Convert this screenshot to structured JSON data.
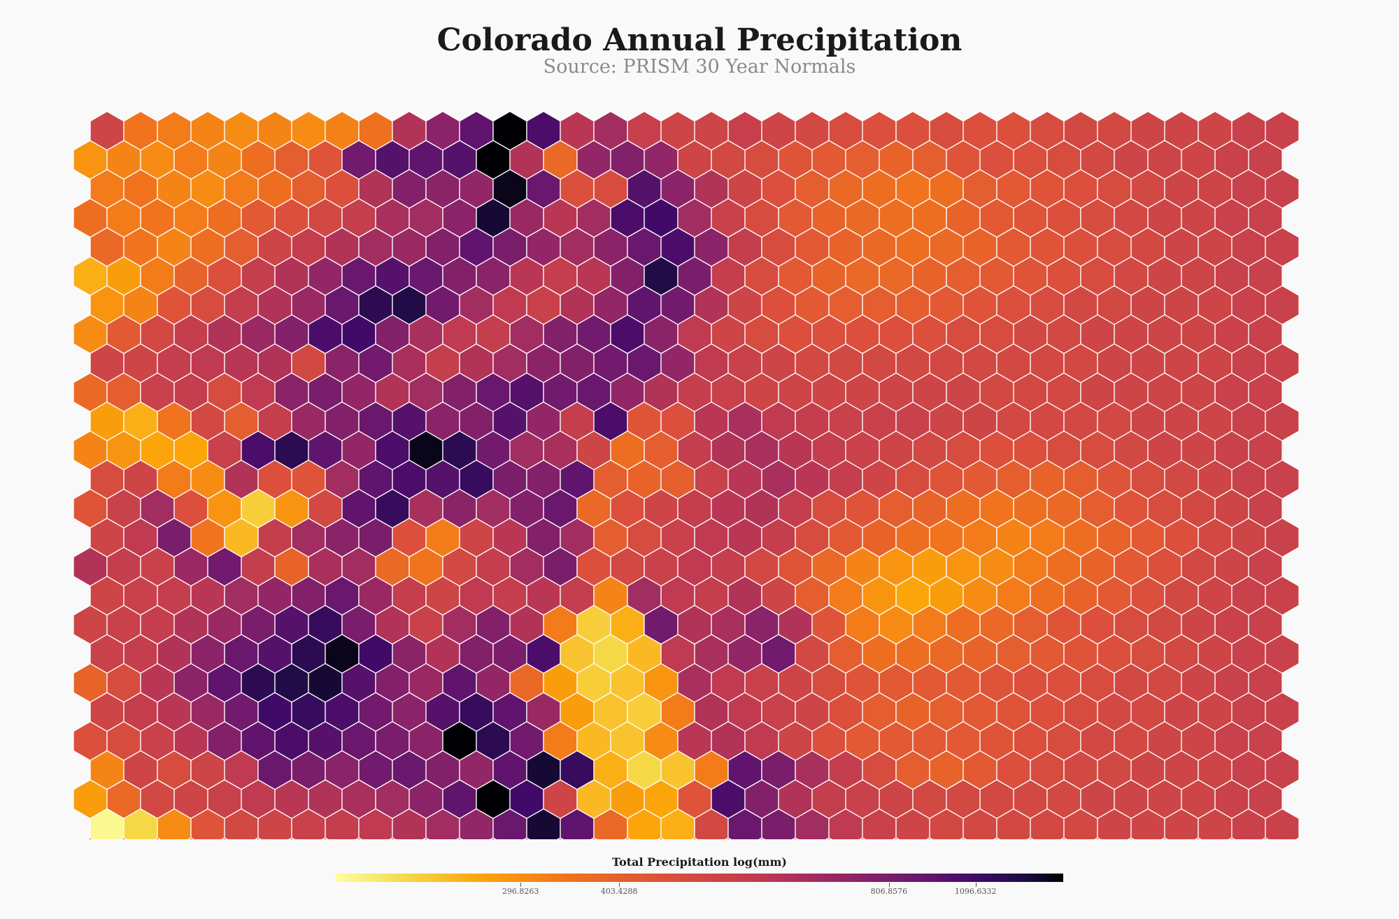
{
  "title": "Colorado Annual Precipitation",
  "subtitle": "Source: PRISM 30 Year Normals",
  "chart_data": {
    "type": "heatmap",
    "grid": "hexagonal",
    "rows": 26,
    "columns": 36,
    "colormap": "inferno_r",
    "legend": {
      "title": "Total Precipitation log(mm)",
      "placement": "bottom",
      "ticks": [
        "296.8263",
        "403.4288",
        "806.8576",
        "1096.6332"
      ],
      "stops": [
        {
          "offset": 0.0,
          "color": "#fcffa4"
        },
        {
          "offset": 0.1,
          "color": "#f6d746"
        },
        {
          "offset": 0.2,
          "color": "#fca50a"
        },
        {
          "offset": 0.32,
          "color": "#f1731d"
        },
        {
          "offset": 0.45,
          "color": "#dd513a"
        },
        {
          "offset": 0.58,
          "color": "#c03a51"
        },
        {
          "offset": 0.7,
          "color": "#932667"
        },
        {
          "offset": 0.8,
          "color": "#6a176e"
        },
        {
          "offset": 0.88,
          "color": "#420a68"
        },
        {
          "offset": 0.95,
          "color": "#1b0c41"
        },
        {
          "offset": 1.0,
          "color": "#000004"
        }
      ]
    },
    "values": [
      [
        0.52,
        0.32,
        0.3,
        0.28,
        0.26,
        0.28,
        0.26,
        0.29,
        0.33,
        0.62,
        0.72,
        0.82,
        1.0,
        0.86,
        0.6,
        0.66,
        0.55,
        0.52,
        0.52,
        0.55,
        0.52,
        0.5,
        0.48,
        0.46,
        0.46,
        0.48,
        0.46,
        0.46,
        0.48,
        0.5,
        0.5,
        0.52,
        0.52,
        0.52,
        0.54,
        0.54
      ],
      [
        0.24,
        0.28,
        0.26,
        0.3,
        0.28,
        0.34,
        0.4,
        0.44,
        0.78,
        0.84,
        0.82,
        0.84,
        1.0,
        0.62,
        0.36,
        0.7,
        0.74,
        0.7,
        0.52,
        0.5,
        0.48,
        0.44,
        0.42,
        0.4,
        0.38,
        0.4,
        0.44,
        0.46,
        0.46,
        0.48,
        0.5,
        0.52,
        0.52,
        0.52,
        0.54,
        0.54
      ],
      [
        0.3,
        0.32,
        0.28,
        0.26,
        0.3,
        0.34,
        0.4,
        0.46,
        0.62,
        0.74,
        0.72,
        0.7,
        0.98,
        0.8,
        0.46,
        0.48,
        0.84,
        0.72,
        0.62,
        0.52,
        0.46,
        0.4,
        0.36,
        0.34,
        0.32,
        0.34,
        0.4,
        0.42,
        0.44,
        0.46,
        0.48,
        0.5,
        0.52,
        0.52,
        0.54,
        0.54
      ],
      [
        0.34,
        0.3,
        0.32,
        0.3,
        0.34,
        0.42,
        0.46,
        0.5,
        0.56,
        0.64,
        0.66,
        0.72,
        0.96,
        0.68,
        0.6,
        0.66,
        0.86,
        0.88,
        0.66,
        0.54,
        0.48,
        0.42,
        0.38,
        0.36,
        0.34,
        0.34,
        0.38,
        0.42,
        0.44,
        0.46,
        0.48,
        0.5,
        0.52,
        0.52,
        0.54,
        0.54
      ],
      [
        0.36,
        0.32,
        0.28,
        0.34,
        0.4,
        0.52,
        0.56,
        0.62,
        0.66,
        0.68,
        0.74,
        0.82,
        0.76,
        0.7,
        0.66,
        0.72,
        0.8,
        0.86,
        0.72,
        0.56,
        0.48,
        0.42,
        0.38,
        0.36,
        0.34,
        0.36,
        0.38,
        0.42,
        0.44,
        0.46,
        0.48,
        0.5,
        0.52,
        0.52,
        0.54,
        0.54
      ],
      [
        0.18,
        0.22,
        0.3,
        0.38,
        0.46,
        0.56,
        0.62,
        0.7,
        0.8,
        0.84,
        0.8,
        0.74,
        0.72,
        0.6,
        0.56,
        0.6,
        0.74,
        0.94,
        0.76,
        0.56,
        0.48,
        0.42,
        0.38,
        0.36,
        0.36,
        0.38,
        0.4,
        0.42,
        0.44,
        0.46,
        0.48,
        0.5,
        0.52,
        0.52,
        0.54,
        0.54
      ],
      [
        0.24,
        0.28,
        0.44,
        0.48,
        0.56,
        0.62,
        0.68,
        0.8,
        0.92,
        0.94,
        0.78,
        0.66,
        0.58,
        0.54,
        0.62,
        0.7,
        0.82,
        0.78,
        0.62,
        0.52,
        0.46,
        0.42,
        0.4,
        0.4,
        0.4,
        0.42,
        0.44,
        0.46,
        0.48,
        0.5,
        0.5,
        0.52,
        0.52,
        0.52,
        0.54,
        0.54
      ],
      [
        0.26,
        0.42,
        0.5,
        0.56,
        0.62,
        0.68,
        0.74,
        0.86,
        0.88,
        0.74,
        0.64,
        0.58,
        0.56,
        0.66,
        0.74,
        0.78,
        0.86,
        0.72,
        0.58,
        0.52,
        0.48,
        0.46,
        0.46,
        0.46,
        0.46,
        0.46,
        0.48,
        0.48,
        0.5,
        0.5,
        0.52,
        0.52,
        0.52,
        0.52,
        0.54,
        0.54
      ],
      [
        0.52,
        0.52,
        0.56,
        0.58,
        0.6,
        0.62,
        0.5,
        0.72,
        0.78,
        0.64,
        0.56,
        0.62,
        0.66,
        0.72,
        0.74,
        0.78,
        0.8,
        0.7,
        0.58,
        0.54,
        0.52,
        0.5,
        0.5,
        0.5,
        0.5,
        0.5,
        0.5,
        0.5,
        0.5,
        0.5,
        0.52,
        0.52,
        0.52,
        0.52,
        0.54,
        0.54
      ],
      [
        0.36,
        0.4,
        0.54,
        0.56,
        0.48,
        0.58,
        0.72,
        0.76,
        0.7,
        0.62,
        0.66,
        0.74,
        0.8,
        0.84,
        0.78,
        0.8,
        0.7,
        0.62,
        0.56,
        0.54,
        0.52,
        0.52,
        0.52,
        0.52,
        0.52,
        0.52,
        0.52,
        0.5,
        0.5,
        0.5,
        0.52,
        0.52,
        0.52,
        0.52,
        0.54,
        0.54
      ],
      [
        0.22,
        0.18,
        0.32,
        0.5,
        0.4,
        0.56,
        0.68,
        0.74,
        0.8,
        0.84,
        0.72,
        0.74,
        0.84,
        0.7,
        0.56,
        0.86,
        0.44,
        0.46,
        0.6,
        0.64,
        0.58,
        0.56,
        0.54,
        0.54,
        0.54,
        0.52,
        0.52,
        0.5,
        0.5,
        0.5,
        0.5,
        0.52,
        0.52,
        0.52,
        0.54,
        0.54
      ],
      [
        0.28,
        0.24,
        0.2,
        0.2,
        0.54,
        0.86,
        0.92,
        0.82,
        0.7,
        0.86,
        0.98,
        0.92,
        0.78,
        0.66,
        0.64,
        0.52,
        0.34,
        0.4,
        0.56,
        0.62,
        0.64,
        0.6,
        0.56,
        0.54,
        0.52,
        0.5,
        0.48,
        0.46,
        0.46,
        0.48,
        0.48,
        0.5,
        0.52,
        0.52,
        0.54,
        0.54
      ],
      [
        0.48,
        0.52,
        0.3,
        0.26,
        0.62,
        0.46,
        0.44,
        0.66,
        0.82,
        0.86,
        0.84,
        0.9,
        0.76,
        0.74,
        0.82,
        0.4,
        0.38,
        0.4,
        0.54,
        0.6,
        0.64,
        0.6,
        0.56,
        0.52,
        0.48,
        0.44,
        0.42,
        0.4,
        0.38,
        0.4,
        0.44,
        0.48,
        0.5,
        0.52,
        0.54,
        0.54
      ],
      [
        0.44,
        0.54,
        0.66,
        0.46,
        0.24,
        0.12,
        0.24,
        0.5,
        0.82,
        0.9,
        0.64,
        0.72,
        0.66,
        0.74,
        0.8,
        0.36,
        0.46,
        0.52,
        0.56,
        0.6,
        0.62,
        0.56,
        0.48,
        0.44,
        0.4,
        0.38,
        0.34,
        0.32,
        0.34,
        0.36,
        0.4,
        0.44,
        0.48,
        0.5,
        0.52,
        0.54
      ],
      [
        0.52,
        0.58,
        0.76,
        0.32,
        0.16,
        0.56,
        0.66,
        0.72,
        0.76,
        0.46,
        0.3,
        0.52,
        0.6,
        0.74,
        0.66,
        0.4,
        0.48,
        0.54,
        0.58,
        0.6,
        0.56,
        0.48,
        0.42,
        0.38,
        0.34,
        0.32,
        0.3,
        0.28,
        0.3,
        0.34,
        0.38,
        0.42,
        0.46,
        0.5,
        0.52,
        0.54
      ],
      [
        0.62,
        0.56,
        0.54,
        0.68,
        0.78,
        0.56,
        0.38,
        0.64,
        0.66,
        0.36,
        0.32,
        0.5,
        0.56,
        0.66,
        0.76,
        0.46,
        0.5,
        0.54,
        0.58,
        0.56,
        0.5,
        0.44,
        0.36,
        0.28,
        0.24,
        0.22,
        0.24,
        0.26,
        0.3,
        0.34,
        0.38,
        0.42,
        0.46,
        0.5,
        0.52,
        0.54
      ],
      [
        0.52,
        0.54,
        0.56,
        0.6,
        0.66,
        0.7,
        0.74,
        0.8,
        0.68,
        0.56,
        0.52,
        0.58,
        0.56,
        0.6,
        0.56,
        0.28,
        0.66,
        0.58,
        0.56,
        0.62,
        0.52,
        0.4,
        0.3,
        0.24,
        0.2,
        0.22,
        0.26,
        0.3,
        0.34,
        0.38,
        0.42,
        0.46,
        0.5,
        0.52,
        0.54,
        0.54
      ],
      [
        0.52,
        0.54,
        0.56,
        0.62,
        0.68,
        0.76,
        0.84,
        0.9,
        0.76,
        0.62,
        0.54,
        0.66,
        0.74,
        0.62,
        0.3,
        0.12,
        0.18,
        0.78,
        0.62,
        0.64,
        0.72,
        0.62,
        0.44,
        0.3,
        0.26,
        0.3,
        0.34,
        0.36,
        0.4,
        0.44,
        0.46,
        0.48,
        0.5,
        0.52,
        0.54,
        0.54
      ],
      [
        0.54,
        0.56,
        0.62,
        0.72,
        0.8,
        0.84,
        0.92,
        0.98,
        0.88,
        0.72,
        0.62,
        0.74,
        0.76,
        0.86,
        0.14,
        0.1,
        0.16,
        0.58,
        0.64,
        0.7,
        0.78,
        0.5,
        0.4,
        0.34,
        0.34,
        0.36,
        0.38,
        0.4,
        0.42,
        0.44,
        0.46,
        0.48,
        0.5,
        0.52,
        0.54,
        0.54
      ],
      [
        0.38,
        0.48,
        0.6,
        0.72,
        0.82,
        0.92,
        0.94,
        0.96,
        0.84,
        0.74,
        0.68,
        0.82,
        0.7,
        0.36,
        0.22,
        0.12,
        0.14,
        0.24,
        0.64,
        0.58,
        0.54,
        0.52,
        0.48,
        0.44,
        0.42,
        0.42,
        0.42,
        0.44,
        0.46,
        0.46,
        0.48,
        0.5,
        0.5,
        0.52,
        0.54,
        0.54
      ],
      [
        0.52,
        0.56,
        0.6,
        0.68,
        0.78,
        0.88,
        0.9,
        0.86,
        0.78,
        0.72,
        0.84,
        0.9,
        0.82,
        0.68,
        0.22,
        0.14,
        0.12,
        0.3,
        0.62,
        0.58,
        0.54,
        0.52,
        0.46,
        0.4,
        0.38,
        0.4,
        0.42,
        0.44,
        0.46,
        0.48,
        0.5,
        0.5,
        0.52,
        0.52,
        0.54,
        0.54
      ],
      [
        0.46,
        0.48,
        0.54,
        0.6,
        0.74,
        0.82,
        0.86,
        0.84,
        0.8,
        0.76,
        0.72,
        1.0,
        0.92,
        0.78,
        0.3,
        0.16,
        0.14,
        0.26,
        0.6,
        0.62,
        0.58,
        0.52,
        0.46,
        0.42,
        0.42,
        0.42,
        0.42,
        0.44,
        0.46,
        0.48,
        0.5,
        0.5,
        0.52,
        0.52,
        0.54,
        0.54
      ],
      [
        0.28,
        0.52,
        0.48,
        0.52,
        0.58,
        0.8,
        0.76,
        0.72,
        0.78,
        0.8,
        0.74,
        0.7,
        0.82,
        0.96,
        0.9,
        0.18,
        0.1,
        0.14,
        0.3,
        0.82,
        0.76,
        0.64,
        0.56,
        0.48,
        0.4,
        0.38,
        0.42,
        0.46,
        0.48,
        0.5,
        0.5,
        0.52,
        0.52,
        0.52,
        0.54,
        0.54
      ],
      [
        0.22,
        0.36,
        0.5,
        0.52,
        0.54,
        0.58,
        0.6,
        0.62,
        0.64,
        0.66,
        0.72,
        0.82,
        1.0,
        0.88,
        0.52,
        0.16,
        0.22,
        0.2,
        0.44,
        0.86,
        0.74,
        0.62,
        0.56,
        0.54,
        0.52,
        0.5,
        0.5,
        0.5,
        0.5,
        0.5,
        0.52,
        0.52,
        0.52,
        0.52,
        0.54,
        0.54
      ],
      [
        0.02,
        0.1,
        0.26,
        0.44,
        0.5,
        0.52,
        0.54,
        0.56,
        0.58,
        0.62,
        0.66,
        0.7,
        0.8,
        0.96,
        0.82,
        0.36,
        0.2,
        0.18,
        0.5,
        0.8,
        0.76,
        0.66,
        0.58,
        0.54,
        0.52,
        0.5,
        0.5,
        0.5,
        0.5,
        0.5,
        0.52,
        0.52,
        0.52,
        0.52,
        0.54,
        0.54
      ],
      [
        0.5,
        0.54,
        0.56,
        0.58,
        0.6,
        0.62,
        0.64,
        0.66,
        0.66,
        0.68,
        0.7,
        0.72,
        0.7,
        0.66,
        0.62,
        0.56,
        0.54,
        0.52,
        0.52,
        0.56,
        0.62,
        0.6,
        0.56,
        0.54,
        0.52,
        0.5,
        0.5,
        0.5,
        0.5,
        0.5,
        0.52,
        0.52,
        0.52,
        0.52,
        0.54,
        0.54
      ]
    ]
  }
}
